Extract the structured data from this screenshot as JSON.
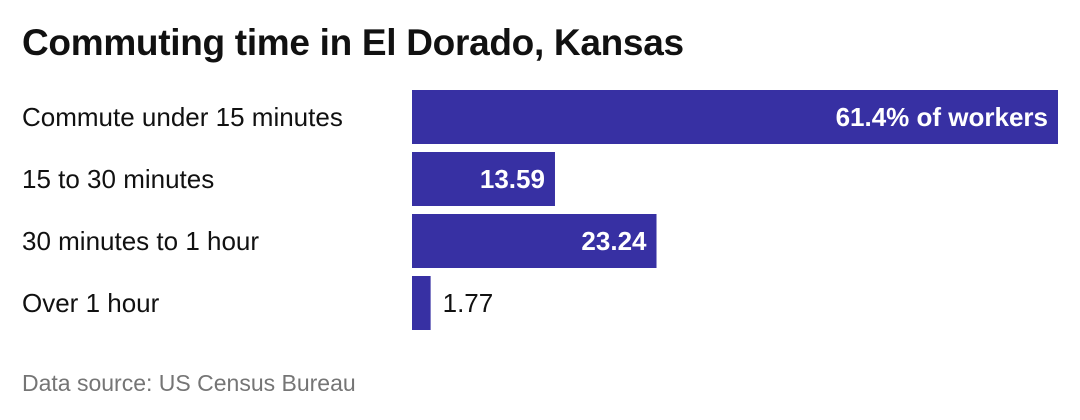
{
  "title": "Commuting time in El Dorado, Kansas",
  "source": "Data source: US Census Bureau",
  "colors": {
    "bar": "#3730a3",
    "label_inside": "#ffffff",
    "label_outside": "#111111",
    "category_text": "#111111",
    "source_text": "#757575"
  },
  "chart_data": {
    "type": "bar",
    "orientation": "horizontal",
    "categories": [
      "Commute under 15 minutes",
      "15 to 30 minutes",
      "30 minutes to 1 hour",
      "Over 1 hour"
    ],
    "values": [
      61.4,
      13.59,
      23.24,
      1.77
    ],
    "value_labels": [
      "61.4% of workers",
      "13.59",
      "23.24",
      "1.77"
    ],
    "unit": "% of workers",
    "xlim": [
      0,
      61.4
    ],
    "grid": false,
    "legend": "none"
  }
}
